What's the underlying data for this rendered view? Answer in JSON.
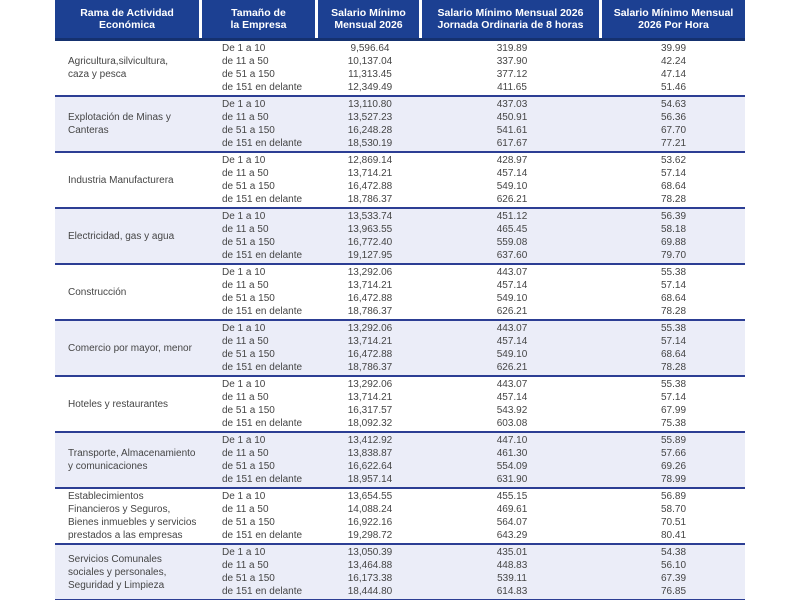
{
  "header": {
    "columns": [
      "Rama de Actividad\nEconómica",
      "Tamaño de\nla Empresa",
      "Salario Mínimo\nMensual 2026",
      "Salario Mínimo Mensual 2026\nJornada Ordinaria de 8 horas",
      "Salario Mínimo Mensual\n2026 Por Hora"
    ]
  },
  "size_labels": [
    "De 1 a 10",
    "de 11 a 50",
    "de 51 a 150",
    "de 151 en delante"
  ],
  "groups": [
    {
      "activity": "Agricultura,silvicultura,\ncaza y pesca",
      "monthly": [
        "9,596.64",
        "10,137.04",
        "11,313.45",
        "12,349.49"
      ],
      "daily_8h": [
        "319.89",
        "337.90",
        "377.12",
        "411.65"
      ],
      "hourly": [
        "39.99",
        "42.24",
        "47.14",
        "51.46"
      ]
    },
    {
      "activity": "Explotación de Minas y\nCanteras",
      "monthly": [
        "13,110.80",
        "13,527.23",
        "16,248.28",
        "18,530.19"
      ],
      "daily_8h": [
        "437.03",
        "450.91",
        "541.61",
        "617.67"
      ],
      "hourly": [
        "54.63",
        "56.36",
        "67.70",
        "77.21"
      ]
    },
    {
      "activity": "Industria Manufacturera",
      "monthly": [
        "12,869.14",
        "13,714.21",
        "16,472.88",
        "18,786.37"
      ],
      "daily_8h": [
        "428.97",
        "457.14",
        "549.10",
        "626.21"
      ],
      "hourly": [
        "53.62",
        "57.14",
        "68.64",
        "78.28"
      ]
    },
    {
      "activity": "Electricidad, gas y agua",
      "monthly": [
        "13,533.74",
        "13,963.55",
        "16,772.40",
        "19,127.95"
      ],
      "daily_8h": [
        "451.12",
        "465.45",
        "559.08",
        "637.60"
      ],
      "hourly": [
        "56.39",
        "58.18",
        "69.88",
        "79.70"
      ]
    },
    {
      "activity": "Construcción",
      "monthly": [
        "13,292.06",
        "13,714.21",
        "16,472.88",
        "18,786.37"
      ],
      "daily_8h": [
        "443.07",
        "457.14",
        "549.10",
        "626.21"
      ],
      "hourly": [
        "55.38",
        "57.14",
        "68.64",
        "78.28"
      ]
    },
    {
      "activity": "Comercio por mayor, menor",
      "monthly": [
        "13,292.06",
        "13,714.21",
        "16,472.88",
        "18,786.37"
      ],
      "daily_8h": [
        "443.07",
        "457.14",
        "549.10",
        "626.21"
      ],
      "hourly": [
        "55.38",
        "57.14",
        "68.64",
        "78.28"
      ]
    },
    {
      "activity": "Hoteles y restaurantes",
      "monthly": [
        "13,292.06",
        "13,714.21",
        "16,317.57",
        "18,092.32"
      ],
      "daily_8h": [
        "443.07",
        "457.14",
        "543.92",
        "603.08"
      ],
      "hourly": [
        "55.38",
        "57.14",
        "67.99",
        "75.38"
      ]
    },
    {
      "activity": "Transporte, Almacenamiento\ny comunicaciones",
      "monthly": [
        "13,412.92",
        "13,838.87",
        "16,622.64",
        "18,957.14"
      ],
      "daily_8h": [
        "447.10",
        "461.30",
        "554.09",
        "631.90"
      ],
      "hourly": [
        "55.89",
        "57.66",
        "69.26",
        "78.99"
      ]
    },
    {
      "activity": "Establecimientos\nFinancieros y Seguros,\nBienes inmuebles y servicios\nprestados a las empresas",
      "monthly": [
        "13,654.55",
        "14,088.24",
        "16,922.16",
        "19,298.72"
      ],
      "daily_8h": [
        "455.15",
        "469.61",
        "564.07",
        "643.29"
      ],
      "hourly": [
        "56.89",
        "58.70",
        "70.51",
        "80.41"
      ]
    },
    {
      "activity": "Servicios Comunales\nsociales y personales,\nSeguridad y Limpieza",
      "monthly": [
        "13,050.39",
        "13,464.88",
        "16,173.38",
        "18,444.80"
      ],
      "daily_8h": [
        "435.01",
        "448.83",
        "539.11",
        "614.83"
      ],
      "hourly": [
        "54.38",
        "56.10",
        "67.39",
        "76.85"
      ]
    }
  ],
  "colors": {
    "header_bg": "#1c4092",
    "header_border": "#15316f",
    "stripe": "#ebedf8",
    "divider": "#2c3e94",
    "header_text": "#ffffff",
    "body_text": "#454545"
  }
}
